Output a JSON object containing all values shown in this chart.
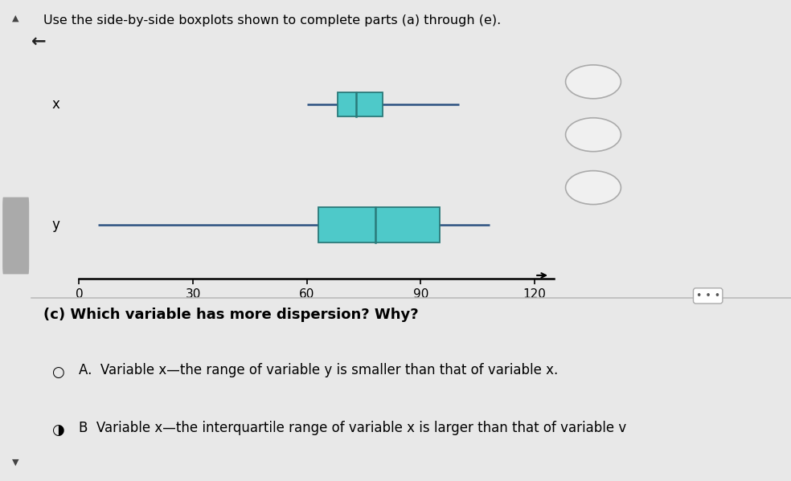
{
  "title_text": "Use the side-by-side boxplots shown to complete parts (a) through (e).",
  "bg_top": "#e8e8e8",
  "bg_bottom": "#ffffff",
  "box_color": "#4ec9c9",
  "box_edge_color": "#2a7a7a",
  "whisker_color": "#2a5080",
  "x_box": {
    "whisker_low": 60,
    "q1": 68,
    "median": 73,
    "q3": 80,
    "whisker_high": 100
  },
  "y_box": {
    "whisker_low": 5,
    "q1": 63,
    "median": 78,
    "q3": 95,
    "whisker_high": 108
  },
  "axis_ticks": [
    0,
    30,
    60,
    90,
    120
  ],
  "xlim": [
    0,
    125
  ],
  "question_c_label": "(c) Which variable has more dispersion? Why?",
  "option_A": "A.  Variable x—the range of variable y is smaller than that of variable x.",
  "option_B": "B  Variable x—the interquartile range of variable x is larger than that of variable v"
}
